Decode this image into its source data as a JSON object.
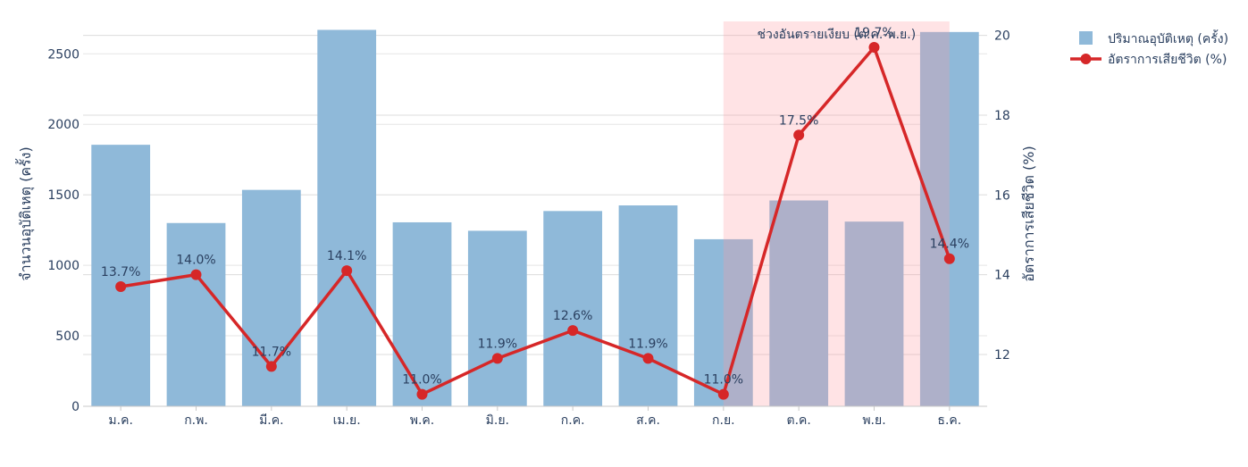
{
  "chart_data": {
    "type": "bar+line",
    "categories": [
      "ม.ค.",
      "ก.พ.",
      "มี.ค.",
      "เม.ย.",
      "พ.ค.",
      "มิ.ย.",
      "ก.ค.",
      "ส.ค.",
      "ก.ย.",
      "ต.ค.",
      "พ.ย.",
      "ธ.ค."
    ],
    "series": [
      {
        "name": "ปริมาณอุบัติเหตุ (ครั้ง)",
        "type": "bar",
        "axis": "left",
        "color": "#8fb9d9",
        "values": [
          1855,
          1300,
          1535,
          2670,
          1305,
          1245,
          1385,
          1425,
          1185,
          1460,
          1310,
          2655
        ]
      },
      {
        "name": "อัตราการเสียชีวิต (%)",
        "type": "line",
        "axis": "right",
        "color": "#d62728",
        "values": [
          13.7,
          14.0,
          11.7,
          14.1,
          11.0,
          11.9,
          12.6,
          11.9,
          11.0,
          17.5,
          19.7,
          14.4
        ],
        "labels": [
          "13.7%",
          "14.0%",
          "11.7%",
          "14.1%",
          "11.0%",
          "11.9%",
          "12.6%",
          "11.9%",
          "11.0%",
          "17.5%",
          "19.7%",
          "14.4%"
        ]
      }
    ],
    "ylabel": "จำนวนอุบัติเหตุ (ครั้ง)",
    "y2label": "อัตราการเสียชีวิต (%)",
    "ylim": [
      0,
      2730
    ],
    "y2lim": [
      10.7,
      20.35
    ],
    "yticks": [
      0,
      500,
      1000,
      1500,
      2000,
      2500
    ],
    "y2ticks": [
      12,
      14,
      16,
      18,
      20
    ],
    "grid": true,
    "legend": "top-right",
    "highlight": {
      "label": "ช่วงอันตรายเงียบ (ต.ค.-พ.ย.)",
      "from": "ก.ย.",
      "to": "ธ.ค.",
      "color": "#ffdfe1"
    }
  }
}
